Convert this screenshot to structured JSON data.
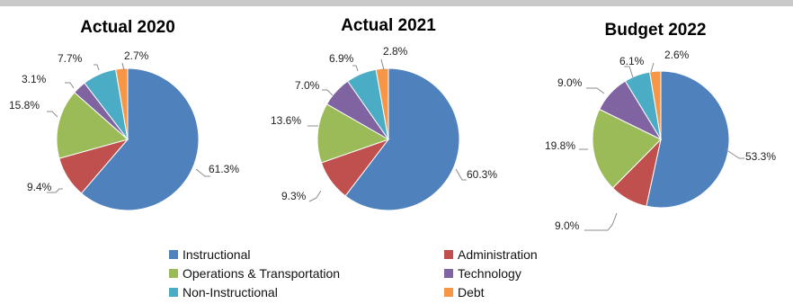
{
  "colors": {
    "Instructional": "#4f81bd",
    "Administration": "#c0504d",
    "Operations & Transportation": "#9bbb59",
    "Technology": "#8064a2",
    "Non-Instructional": "#4bacc6",
    "Debt": "#f79646"
  },
  "chart_data": [
    {
      "type": "pie",
      "title": "Actual 2020",
      "categories": [
        "Instructional",
        "Administration",
        "Operations & Transportation",
        "Technology",
        "Non-Instructional",
        "Debt"
      ],
      "values": [
        61.3,
        9.4,
        15.8,
        3.1,
        7.7,
        2.7
      ],
      "labels": [
        "61.3%",
        "9.4%",
        "15.8%",
        "3.1%",
        "7.7%",
        "2.7%"
      ]
    },
    {
      "type": "pie",
      "title": "Actual 2021",
      "categories": [
        "Instructional",
        "Administration",
        "Operations & Transportation",
        "Technology",
        "Non-Instructional",
        "Debt"
      ],
      "values": [
        60.3,
        9.3,
        13.6,
        7.0,
        6.9,
        2.8
      ],
      "labels": [
        "60.3%",
        "9.3%",
        "13.6%",
        "7.0%",
        "6.9%",
        "2.8%"
      ]
    },
    {
      "type": "pie",
      "title": "Budget 2022",
      "categories": [
        "Instructional",
        "Administration",
        "Operations & Transportation",
        "Technology",
        "Non-Instructional",
        "Debt"
      ],
      "values": [
        53.3,
        9.0,
        19.8,
        9.0,
        6.1,
        2.6
      ],
      "labels": [
        "53.3%",
        "9.0%",
        "19.8%",
        "9.0%",
        "6.1%",
        "2.6%"
      ]
    }
  ],
  "legend": {
    "placement": "bottom",
    "items": [
      "Instructional",
      "Administration",
      "Operations & Transportation",
      "Technology",
      "Non-Instructional",
      "Debt"
    ]
  }
}
